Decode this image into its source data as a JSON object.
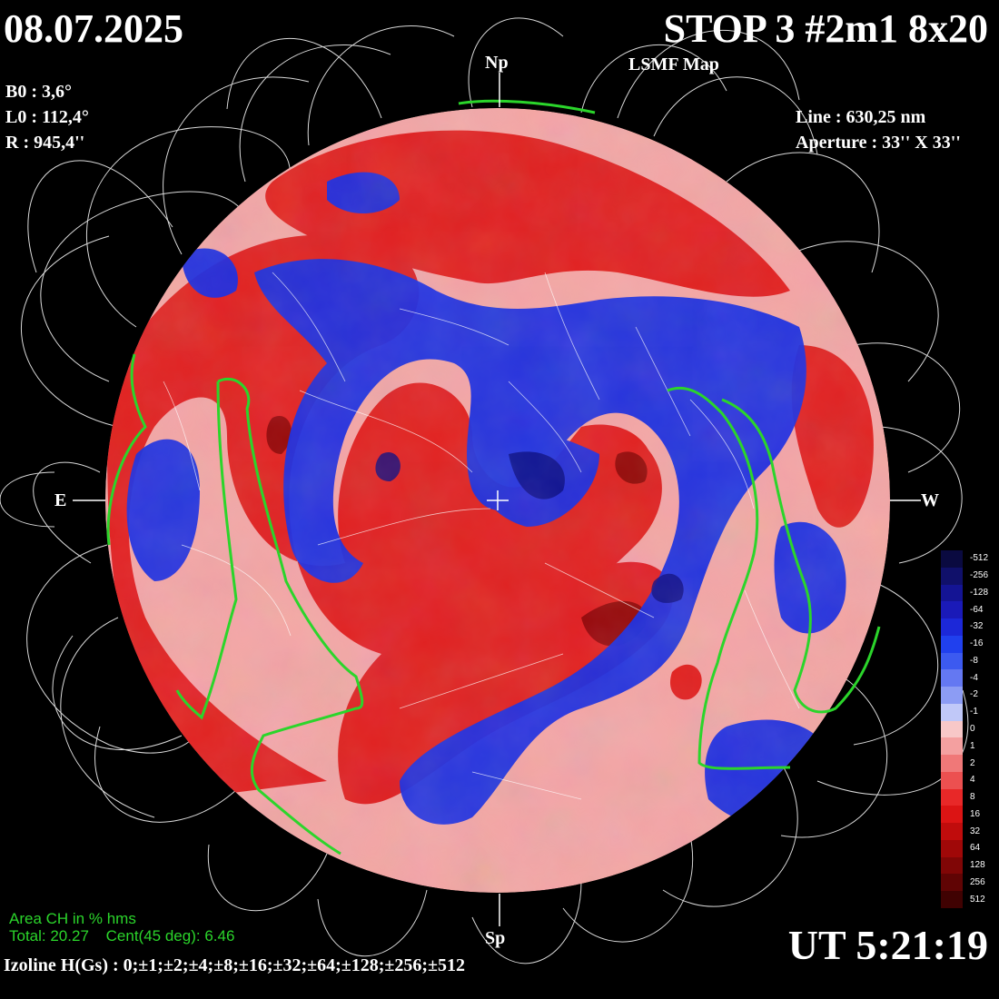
{
  "header": {
    "date": "08.07.2025",
    "observation": "STOP 3 #2m1 8x20",
    "map_type": "LSMF  Map"
  },
  "parameters": {
    "b0": "B0 : 3,6°",
    "l0": "L0 : 112,4°",
    "r": "R  : 945,4''",
    "line": "Line :  630,25 nm",
    "aperture": "Aperture : 33'' X 33''"
  },
  "directions": {
    "north": "Np",
    "south": "Sp",
    "east": "E",
    "west": "W"
  },
  "coronal_hole": {
    "area_label": "Area CH in % hms",
    "total": "Total: 20.27",
    "central": "Cent(45 deg): 6.46"
  },
  "izoline": "Izoline H(Gs) : 0;±1;±2;±4;±8;±16;±32;±64;±128;±256;±512",
  "time": "UT 5:21:19",
  "colors": {
    "positive": "#e8161a",
    "negative": "#1a2ee8",
    "coronal_hole_boundary": "#2bd52b",
    "field_lines": "#ffffff",
    "background": "#000000"
  },
  "colorbar": {
    "labels": [
      "-512",
      "-256",
      "-128",
      "-64",
      "-32",
      "-16",
      "-8",
      "-4",
      "-2",
      "-1",
      "0",
      "1",
      "2",
      "4",
      "8",
      "16",
      "32",
      "64",
      "128",
      "256",
      "512"
    ],
    "colors": [
      "#0a0a40",
      "#10106a",
      "#141494",
      "#1a1ab8",
      "#1c28d8",
      "#2040ee",
      "#3c5af0",
      "#6478f2",
      "#8c9cf4",
      "#c0c8f8",
      "#f8c8c8",
      "#f4a0a0",
      "#f07878",
      "#ec5050",
      "#e82828",
      "#dc1414",
      "#c00c0c",
      "#a00808",
      "#800606",
      "#600404",
      "#400202"
    ]
  }
}
